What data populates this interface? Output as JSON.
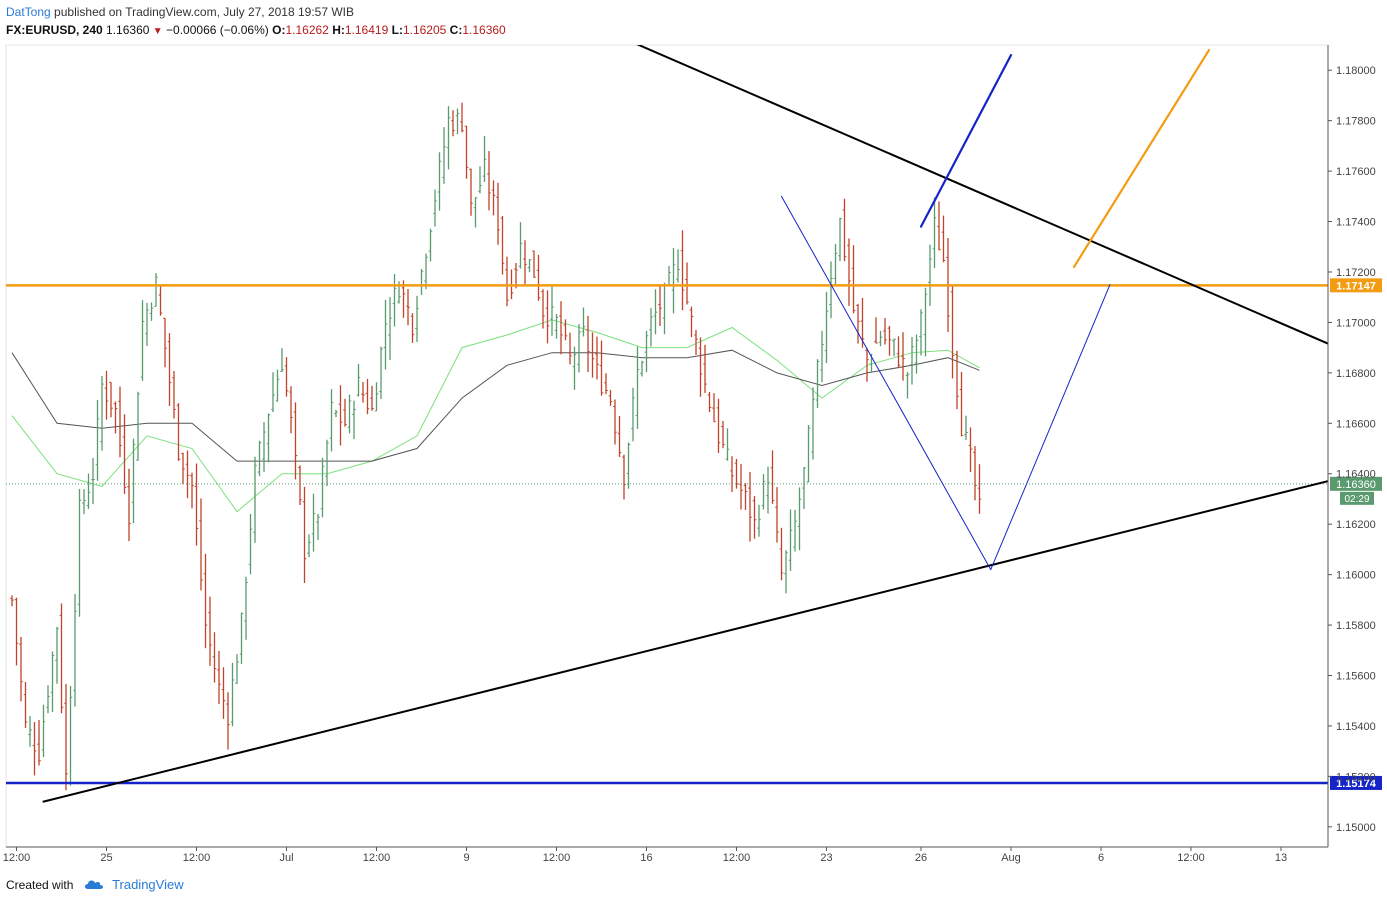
{
  "header": {
    "author": "DatTong",
    "published": "published on TradingView.com, July 27, 2018 19:57 WIB",
    "symbol": "FX:EURUSD, 240",
    "last": "1.16360",
    "change": "−0.00066 (−0.06%)",
    "o_label": "O:",
    "o": "1.16262",
    "h_label": "H:",
    "h": "1.16419",
    "l_label": "L:",
    "l": "1.16205",
    "c_label": "C:",
    "c": "1.16360"
  },
  "footer": {
    "created_with": "Created with",
    "brand": "TradingView"
  },
  "colors": {
    "up": "#5b9a6e",
    "down": "#c0432b",
    "orange": "#f39c12",
    "blue": "#1424c8",
    "ma_fast": "#7ee07e",
    "ma_slow": "#555555",
    "last_badge": "#5b9a6e"
  },
  "chart_data": {
    "type": "candlestick",
    "symbol": "FX:EURUSD",
    "timeframe": "240",
    "y_axis": {
      "range": [
        1.1492,
        1.181
      ],
      "ticks": [
        "1.18000",
        "1.17800",
        "1.17600",
        "1.17400",
        "1.17200",
        "1.17000",
        "1.16800",
        "1.16600",
        "1.16400",
        "1.16200",
        "1.16000",
        "1.15800",
        "1.15600",
        "1.15400",
        "1.15200",
        "1.15000"
      ]
    },
    "x_axis": {
      "ticks": [
        {
          "label": "12:00",
          "bar": 1
        },
        {
          "label": "25",
          "bar": 21
        },
        {
          "label": "12:00",
          "bar": 41
        },
        {
          "label": "Jul",
          "bar": 61
        },
        {
          "label": "12:00",
          "bar": 81
        },
        {
          "label": "9",
          "bar": 101
        },
        {
          "label": "12:00",
          "bar": 121
        },
        {
          "label": "16",
          "bar": 141
        },
        {
          "label": "12:00",
          "bar": 161
        },
        {
          "label": "23",
          "bar": 181
        },
        {
          "label": "26",
          "bar": 202
        },
        {
          "label": "Aug",
          "bar": 222
        },
        {
          "label": "6",
          "bar": 242
        },
        {
          "label": "12:00",
          "bar": 262
        },
        {
          "label": "13",
          "bar": 282
        }
      ]
    },
    "price_levels": [
      {
        "name": "orange-resistance",
        "value": 1.17147,
        "label": "1.17147",
        "color": "#f39c12"
      },
      {
        "name": "blue-support",
        "value": 1.15174,
        "label": "1.15174",
        "color": "#1424c8"
      }
    ],
    "last_price": {
      "value": 1.1636,
      "label": "1.16360",
      "timer": "02:29"
    },
    "trendlines": [
      {
        "name": "upper-trendline",
        "color": "#000000",
        "points": [
          [
            63,
            1.1869
          ],
          [
            294.5,
            1.169
          ]
        ]
      },
      {
        "name": "lower-trendline",
        "color": "#000000",
        "points": [
          [
            7,
            1.151
          ],
          [
            294.5,
            1.1638
          ]
        ]
      },
      {
        "name": "projection-down",
        "color": "#1424c8",
        "points": [
          [
            171,
            1.175
          ],
          [
            217.5,
            1.1602
          ]
        ]
      },
      {
        "name": "projection-up",
        "color": "#1424c8",
        "points": [
          [
            217.5,
            1.1602
          ],
          [
            244,
            1.1715
          ]
        ]
      },
      {
        "name": "blue-breakout-arrow",
        "color": "#1424c8",
        "points": [
          [
            202,
            1.1738
          ],
          [
            222,
            1.1806
          ]
        ]
      },
      {
        "name": "orange-breakout-arrow",
        "color": "#f39c12",
        "points": [
          [
            236,
            1.1722
          ],
          [
            266,
            1.1808
          ]
        ]
      }
    ],
    "ohlc_anchors": [
      [
        0,
        1.159
      ],
      [
        3,
        1.154
      ],
      [
        6,
        1.153
      ],
      [
        10,
        1.158
      ],
      [
        12,
        1.152
      ],
      [
        15,
        1.1625
      ],
      [
        18,
        1.164
      ],
      [
        20,
        1.1675
      ],
      [
        23,
        1.1665
      ],
      [
        26,
        1.1625
      ],
      [
        29,
        1.17
      ],
      [
        32,
        1.1715
      ],
      [
        34,
        1.169
      ],
      [
        37,
        1.165
      ],
      [
        40,
        1.1635
      ],
      [
        43,
        1.158
      ],
      [
        46,
        1.1555
      ],
      [
        48,
        1.1545
      ],
      [
        51,
        1.158
      ],
      [
        54,
        1.164
      ],
      [
        57,
        1.1665
      ],
      [
        60,
        1.1685
      ],
      [
        62,
        1.166
      ],
      [
        65,
        1.161
      ],
      [
        68,
        1.1625
      ],
      [
        71,
        1.1665
      ],
      [
        74,
        1.166
      ],
      [
        77,
        1.1675
      ],
      [
        80,
        1.1665
      ],
      [
        83,
        1.17
      ],
      [
        86,
        1.1715
      ],
      [
        89,
        1.17
      ],
      [
        92,
        1.173
      ],
      [
        95,
        1.176
      ],
      [
        97,
        1.178
      ],
      [
        100,
        1.178
      ],
      [
        102,
        1.1745
      ],
      [
        105,
        1.176
      ],
      [
        108,
        1.174
      ],
      [
        110,
        1.171
      ],
      [
        113,
        1.173
      ],
      [
        116,
        1.172
      ],
      [
        118,
        1.1705
      ],
      [
        121,
        1.17
      ],
      [
        124,
        1.1685
      ],
      [
        127,
        1.1695
      ],
      [
        130,
        1.168
      ],
      [
        133,
        1.167
      ],
      [
        136,
        1.164
      ],
      [
        139,
        1.168
      ],
      [
        142,
        1.17
      ],
      [
        145,
        1.171
      ],
      [
        148,
        1.1725
      ],
      [
        151,
        1.17
      ],
      [
        154,
        1.1675
      ],
      [
        157,
        1.1655
      ],
      [
        160,
        1.164
      ],
      [
        163,
        1.163
      ],
      [
        165,
        1.162
      ],
      [
        168,
        1.164
      ],
      [
        171,
        1.16
      ],
      [
        174,
        1.162
      ],
      [
        176,
        1.164
      ],
      [
        179,
        1.168
      ],
      [
        182,
        1.172
      ],
      [
        184,
        1.174
      ],
      [
        187,
        1.1705
      ],
      [
        190,
        1.1685
      ],
      [
        193,
        1.1695
      ],
      [
        196,
        1.169
      ],
      [
        199,
        1.168
      ],
      [
        202,
        1.17
      ],
      [
        205,
        1.1738
      ],
      [
        207,
        1.1725
      ],
      [
        209,
        1.169
      ],
      [
        211,
        1.166
      ],
      [
        213,
        1.1645
      ],
      [
        215,
        1.1625
      ]
    ],
    "moving_averages": [
      {
        "name": "MA fast",
        "color": "#7ee07e",
        "points": [
          [
            0,
            1.1663
          ],
          [
            10,
            1.164
          ],
          [
            20,
            1.1635
          ],
          [
            30,
            1.1655
          ],
          [
            40,
            1.165
          ],
          [
            50,
            1.1625
          ],
          [
            60,
            1.164
          ],
          [
            70,
            1.164
          ],
          [
            80,
            1.1645
          ],
          [
            90,
            1.1655
          ],
          [
            100,
            1.169
          ],
          [
            110,
            1.1695
          ],
          [
            120,
            1.1701
          ],
          [
            130,
            1.1696
          ],
          [
            140,
            1.169
          ],
          [
            150,
            1.169
          ],
          [
            160,
            1.1698
          ],
          [
            170,
            1.1685
          ],
          [
            180,
            1.167
          ],
          [
            190,
            1.1683
          ],
          [
            200,
            1.1688
          ],
          [
            208,
            1.1689
          ],
          [
            215,
            1.1682
          ]
        ]
      },
      {
        "name": "MA slow",
        "color": "#555555",
        "points": [
          [
            0,
            1.1688
          ],
          [
            10,
            1.166
          ],
          [
            20,
            1.1658
          ],
          [
            30,
            1.166
          ],
          [
            40,
            1.166
          ],
          [
            50,
            1.1645
          ],
          [
            60,
            1.1645
          ],
          [
            70,
            1.1645
          ],
          [
            80,
            1.1645
          ],
          [
            90,
            1.165
          ],
          [
            100,
            1.167
          ],
          [
            110,
            1.1683
          ],
          [
            120,
            1.1688
          ],
          [
            130,
            1.1688
          ],
          [
            140,
            1.1686
          ],
          [
            150,
            1.1686
          ],
          [
            160,
            1.1689
          ],
          [
            170,
            1.168
          ],
          [
            180,
            1.1675
          ],
          [
            190,
            1.168
          ],
          [
            200,
            1.1683
          ],
          [
            208,
            1.1686
          ],
          [
            215,
            1.1681
          ]
        ]
      }
    ]
  }
}
